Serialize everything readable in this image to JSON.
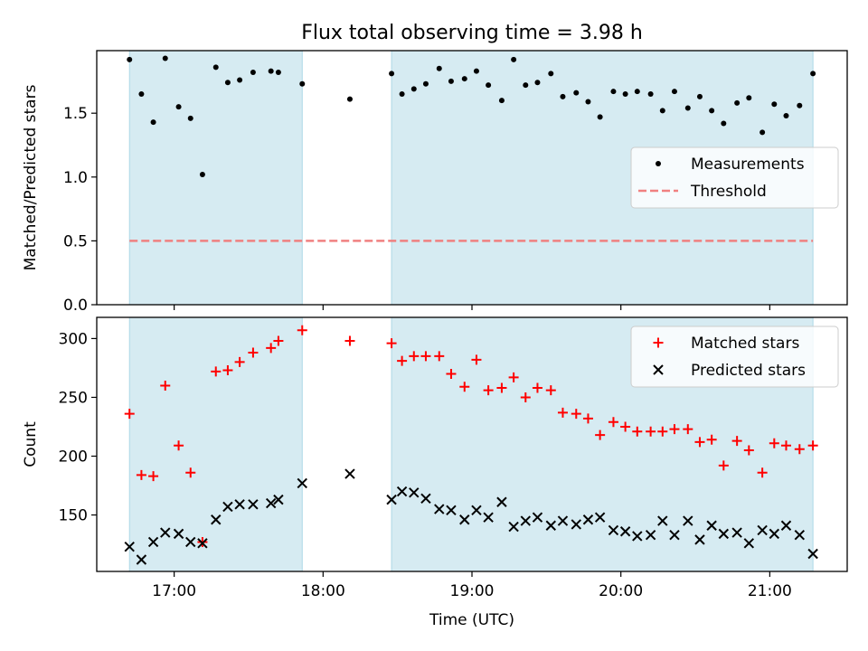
{
  "figure_title": "Flux total observing time = 3.98 h",
  "colors": {
    "shade": "#add8e6",
    "shade_alpha": 0.5,
    "matched": "#ff0000",
    "predicted": "#000000",
    "measurement": "#000000",
    "threshold": "#f08080"
  },
  "chart_data": [
    {
      "type": "scatter",
      "panel": "top",
      "title": "Flux total observing time = 3.98 h",
      "xlabel": "",
      "ylabel": "Matched/Predicted stars",
      "xlim": [
        16.48,
        21.52
      ],
      "ylim": [
        0.0,
        1.99
      ],
      "yticks": [
        0.0,
        0.5,
        1.0,
        1.5
      ],
      "ytick_labels": [
        "0.0",
        "0.5",
        "1.0",
        "1.5"
      ],
      "xticks": [
        17,
        18,
        19,
        20,
        21
      ],
      "legend_position": "center-right",
      "shaded_intervals": [
        [
          16.7,
          17.86
        ],
        [
          18.46,
          21.29
        ]
      ],
      "threshold": {
        "name": "Threshold",
        "value": 0.5,
        "x_range": [
          16.7,
          21.29
        ]
      },
      "series": [
        {
          "name": "Measurements",
          "marker": "dot",
          "points": [
            [
              16.7,
              1.92
            ],
            [
              16.78,
              1.65
            ],
            [
              16.86,
              1.43
            ],
            [
              16.94,
              1.93
            ],
            [
              17.03,
              1.55
            ],
            [
              17.11,
              1.46
            ],
            [
              17.19,
              1.02
            ],
            [
              17.28,
              1.86
            ],
            [
              17.36,
              1.74
            ],
            [
              17.44,
              1.76
            ],
            [
              17.53,
              1.82
            ],
            [
              17.65,
              1.83
            ],
            [
              17.7,
              1.82
            ],
            [
              17.86,
              1.73
            ],
            [
              18.18,
              1.61
            ],
            [
              18.46,
              1.81
            ],
            [
              18.53,
              1.65
            ],
            [
              18.61,
              1.69
            ],
            [
              18.69,
              1.73
            ],
            [
              18.78,
              1.85
            ],
            [
              18.86,
              1.75
            ],
            [
              18.95,
              1.77
            ],
            [
              19.03,
              1.83
            ],
            [
              19.11,
              1.72
            ],
            [
              19.2,
              1.6
            ],
            [
              19.28,
              1.92
            ],
            [
              19.36,
              1.72
            ],
            [
              19.44,
              1.74
            ],
            [
              19.53,
              1.81
            ],
            [
              19.61,
              1.63
            ],
            [
              19.7,
              1.66
            ],
            [
              19.78,
              1.59
            ],
            [
              19.86,
              1.47
            ],
            [
              19.95,
              1.67
            ],
            [
              20.03,
              1.65
            ],
            [
              20.11,
              1.67
            ],
            [
              20.2,
              1.65
            ],
            [
              20.28,
              1.52
            ],
            [
              20.36,
              1.67
            ],
            [
              20.45,
              1.54
            ],
            [
              20.53,
              1.63
            ],
            [
              20.61,
              1.52
            ],
            [
              20.69,
              1.42
            ],
            [
              20.78,
              1.58
            ],
            [
              20.86,
              1.62
            ],
            [
              20.95,
              1.35
            ],
            [
              21.03,
              1.57
            ],
            [
              21.11,
              1.48
            ],
            [
              21.2,
              1.56
            ],
            [
              21.29,
              1.81
            ]
          ]
        }
      ]
    },
    {
      "type": "scatter",
      "panel": "bottom",
      "title": "",
      "xlabel": "Time (UTC)",
      "ylabel": "Count",
      "xlim": [
        16.48,
        21.52
      ],
      "ylim": [
        102,
        318
      ],
      "yticks": [
        150,
        200,
        250,
        300
      ],
      "ytick_labels": [
        "150",
        "200",
        "250",
        "300"
      ],
      "xticks": [
        17,
        18,
        19,
        20,
        21
      ],
      "xtick_labels": [
        "17:00",
        "18:00",
        "19:00",
        "20:00",
        "21:00"
      ],
      "legend_position": "top-right",
      "shaded_intervals": [
        [
          16.7,
          17.86
        ],
        [
          18.46,
          21.29
        ]
      ],
      "series": [
        {
          "name": "Matched stars",
          "marker": "plus",
          "points": [
            [
              16.7,
              236
            ],
            [
              16.78,
              184
            ],
            [
              16.86,
              183
            ],
            [
              16.94,
              260
            ],
            [
              17.03,
              209
            ],
            [
              17.11,
              186
            ],
            [
              17.19,
              127
            ],
            [
              17.28,
              272
            ],
            [
              17.36,
              273
            ],
            [
              17.44,
              280
            ],
            [
              17.53,
              288
            ],
            [
              17.65,
              292
            ],
            [
              17.7,
              298
            ],
            [
              17.86,
              307
            ],
            [
              18.18,
              298
            ],
            [
              18.46,
              296
            ],
            [
              18.53,
              281
            ],
            [
              18.61,
              285
            ],
            [
              18.69,
              285
            ],
            [
              18.78,
              285
            ],
            [
              18.86,
              270
            ],
            [
              18.95,
              259
            ],
            [
              19.03,
              282
            ],
            [
              19.11,
              256
            ],
            [
              19.2,
              258
            ],
            [
              19.28,
              267
            ],
            [
              19.36,
              250
            ],
            [
              19.44,
              258
            ],
            [
              19.53,
              256
            ],
            [
              19.61,
              237
            ],
            [
              19.7,
              236
            ],
            [
              19.78,
              232
            ],
            [
              19.86,
              218
            ],
            [
              19.95,
              229
            ],
            [
              20.03,
              225
            ],
            [
              20.11,
              221
            ],
            [
              20.2,
              221
            ],
            [
              20.28,
              221
            ],
            [
              20.36,
              223
            ],
            [
              20.45,
              223
            ],
            [
              20.53,
              212
            ],
            [
              20.61,
              214
            ],
            [
              20.69,
              192
            ],
            [
              20.78,
              213
            ],
            [
              20.86,
              205
            ],
            [
              20.95,
              186
            ],
            [
              21.03,
              211
            ],
            [
              21.11,
              209
            ],
            [
              21.2,
              206
            ],
            [
              21.29,
              209
            ]
          ]
        },
        {
          "name": "Predicted stars",
          "marker": "x",
          "points": [
            [
              16.7,
              123
            ],
            [
              16.78,
              112
            ],
            [
              16.86,
              127
            ],
            [
              16.94,
              135
            ],
            [
              17.03,
              134
            ],
            [
              17.11,
              127
            ],
            [
              17.19,
              126
            ],
            [
              17.28,
              146
            ],
            [
              17.36,
              157
            ],
            [
              17.44,
              159
            ],
            [
              17.53,
              159
            ],
            [
              17.65,
              160
            ],
            [
              17.7,
              163
            ],
            [
              17.86,
              177
            ],
            [
              18.18,
              185
            ],
            [
              18.46,
              163
            ],
            [
              18.53,
              170
            ],
            [
              18.61,
              169
            ],
            [
              18.69,
              164
            ],
            [
              18.78,
              155
            ],
            [
              18.86,
              154
            ],
            [
              18.95,
              146
            ],
            [
              19.03,
              154
            ],
            [
              19.11,
              148
            ],
            [
              19.2,
              161
            ],
            [
              19.28,
              140
            ],
            [
              19.36,
              145
            ],
            [
              19.44,
              148
            ],
            [
              19.53,
              141
            ],
            [
              19.61,
              145
            ],
            [
              19.7,
              142
            ],
            [
              19.78,
              146
            ],
            [
              19.86,
              148
            ],
            [
              19.95,
              137
            ],
            [
              20.03,
              136
            ],
            [
              20.11,
              132
            ],
            [
              20.2,
              133
            ],
            [
              20.28,
              145
            ],
            [
              20.36,
              133
            ],
            [
              20.45,
              145
            ],
            [
              20.53,
              129
            ],
            [
              20.61,
              141
            ],
            [
              20.69,
              134
            ],
            [
              20.78,
              135
            ],
            [
              20.86,
              126
            ],
            [
              20.95,
              137
            ],
            [
              21.03,
              134
            ],
            [
              21.11,
              141
            ],
            [
              21.2,
              133
            ],
            [
              21.29,
              117
            ]
          ]
        }
      ]
    }
  ]
}
